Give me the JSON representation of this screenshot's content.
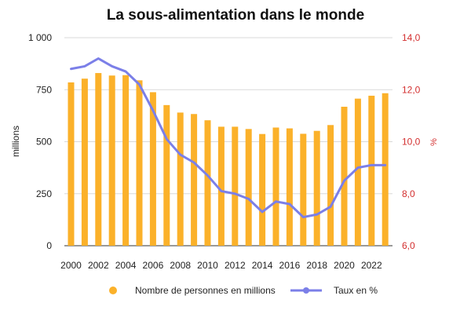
{
  "chart_data": {
    "type": "bar",
    "title": "La sous-alimentation dans le monde",
    "ylabel": "millions",
    "ylabel_right": "%",
    "ylim": [
      0,
      1000
    ],
    "ylim_right": [
      6,
      14
    ],
    "yticks": [
      "0",
      "250",
      "500",
      "750",
      "1 000"
    ],
    "yticks_right": [
      "6,0",
      "8,0",
      "10,0",
      "12,0",
      "14,0"
    ],
    "x": [
      2000,
      2001,
      2002,
      2003,
      2004,
      2005,
      2006,
      2007,
      2008,
      2009,
      2010,
      2011,
      2012,
      2013,
      2014,
      2015,
      2016,
      2017,
      2018,
      2019,
      2020,
      2021,
      2022,
      2023
    ],
    "xtick_labels": [
      "2000",
      "2002",
      "2004",
      "2006",
      "2008",
      "2010",
      "2012",
      "2014",
      "2016",
      "2018",
      "2020",
      "2022"
    ],
    "series": [
      {
        "name": "Nombre de personnes en millions",
        "type": "bar",
        "axis": "left",
        "color": "#fbb12a",
        "values": [
          785,
          803,
          830,
          818,
          820,
          795,
          738,
          676,
          640,
          633,
          603,
          572,
          572,
          561,
          537,
          568,
          564,
          538,
          552,
          580,
          668,
          707,
          721,
          733
        ]
      },
      {
        "name": "Taux en %",
        "type": "line",
        "axis": "right",
        "color": "#7b7fe8",
        "values": [
          12.8,
          12.9,
          13.2,
          12.9,
          12.7,
          12.2,
          11.2,
          10.1,
          9.5,
          9.2,
          8.7,
          8.1,
          8.0,
          7.8,
          7.3,
          7.7,
          7.6,
          7.1,
          7.2,
          7.5,
          8.5,
          9.0,
          9.1,
          9.1
        ]
      }
    ],
    "legend_position": "bottom",
    "grid": true
  }
}
